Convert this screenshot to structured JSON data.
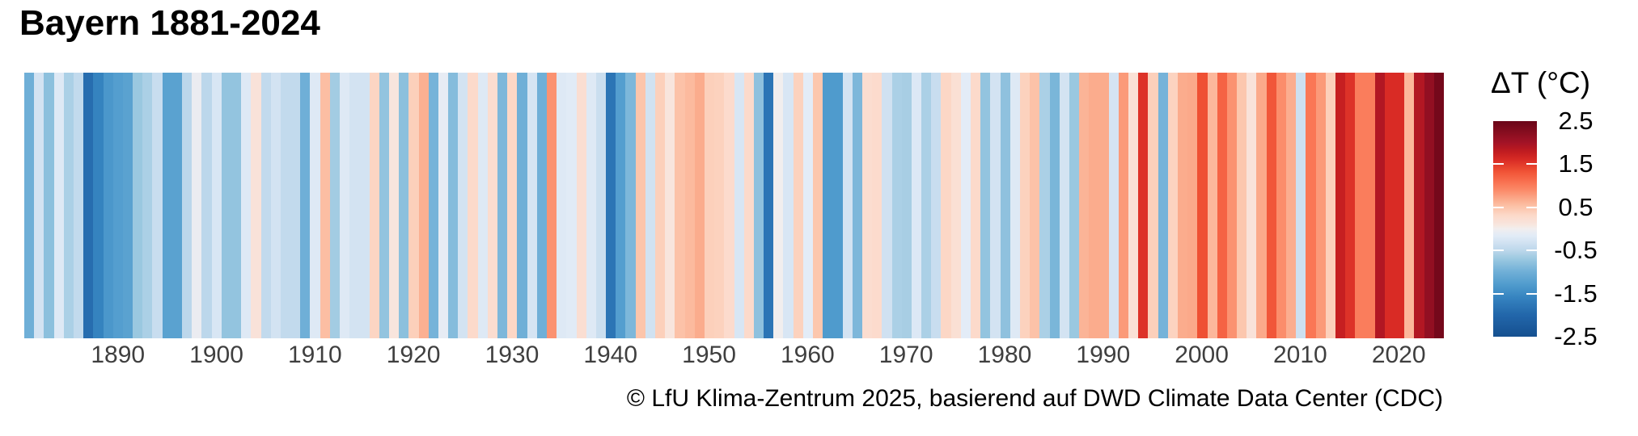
{
  "title": "Bayern 1881-2024",
  "caption": "© LfU Klima-Zentrum 2025, basierend auf DWD Climate Data Center (CDC)",
  "legend": {
    "title": "ΔT (°C)",
    "tick_labels": [
      "2.5",
      "1.5",
      "0.5",
      "-0.5",
      "-1.5",
      "-2.5"
    ],
    "tick_values": [
      2.5,
      1.5,
      0.5,
      -0.5,
      -1.5,
      -2.5
    ],
    "inner_tick_values": [
      1.5,
      0.5,
      -0.5,
      -1.5
    ]
  },
  "x_axis": {
    "tick_years": [
      1890,
      1900,
      1910,
      1920,
      1930,
      1940,
      1950,
      1960,
      1970,
      1980,
      1990,
      2000,
      2010,
      2020
    ],
    "label_color": "#3f3f3f"
  },
  "chart_data": {
    "type": "heatmap",
    "style": "warming_stripes",
    "title": "Bayern 1881-2024",
    "ylabel": "ΔT (°C)",
    "value_range": [
      -2.5,
      2.5
    ],
    "start_year": 1881,
    "end_year": 2024,
    "years": [
      1881,
      1882,
      1883,
      1884,
      1885,
      1886,
      1887,
      1888,
      1889,
      1890,
      1891,
      1892,
      1893,
      1894,
      1895,
      1896,
      1897,
      1898,
      1899,
      1900,
      1901,
      1902,
      1903,
      1904,
      1905,
      1906,
      1907,
      1908,
      1909,
      1910,
      1911,
      1912,
      1913,
      1914,
      1915,
      1916,
      1917,
      1918,
      1919,
      1920,
      1921,
      1922,
      1923,
      1924,
      1925,
      1926,
      1927,
      1928,
      1929,
      1930,
      1931,
      1932,
      1933,
      1934,
      1935,
      1936,
      1937,
      1938,
      1939,
      1940,
      1941,
      1942,
      1943,
      1944,
      1945,
      1946,
      1947,
      1948,
      1949,
      1950,
      1951,
      1952,
      1953,
      1954,
      1955,
      1956,
      1957,
      1958,
      1959,
      1960,
      1961,
      1962,
      1963,
      1964,
      1965,
      1966,
      1967,
      1968,
      1969,
      1970,
      1971,
      1972,
      1973,
      1974,
      1975,
      1976,
      1977,
      1978,
      1979,
      1980,
      1981,
      1982,
      1983,
      1984,
      1985,
      1986,
      1987,
      1988,
      1989,
      1990,
      1991,
      1992,
      1993,
      1994,
      1995,
      1996,
      1997,
      1998,
      1999,
      2000,
      2001,
      2002,
      2003,
      2004,
      2005,
      2006,
      2007,
      2008,
      2009,
      2010,
      2011,
      2012,
      2013,
      2014,
      2015,
      2016,
      2017,
      2018,
      2019,
      2020,
      2021,
      2022,
      2023,
      2024
    ],
    "values": [
      -1.0,
      -0.3,
      -0.8,
      -0.2,
      -0.6,
      -0.45,
      -1.9,
      -1.6,
      -1.35,
      -1.25,
      -1.2,
      -0.7,
      -0.6,
      -0.4,
      -1.2,
      -1.2,
      -0.5,
      -0.05,
      -0.5,
      -0.25,
      -0.75,
      -0.75,
      -0.2,
      0.15,
      -0.45,
      -0.3,
      -0.45,
      -0.45,
      -1.0,
      -0.2,
      0.55,
      -0.65,
      -0.2,
      -0.3,
      -0.3,
      0.35,
      -0.75,
      0.1,
      -0.8,
      0.4,
      0.65,
      -0.95,
      -0.1,
      -0.85,
      -0.3,
      0.3,
      -0.2,
      0.25,
      -0.9,
      0.33,
      -1.0,
      -0.28,
      -1.0,
      0.85,
      -0.2,
      -0.17,
      0.22,
      -0.2,
      -0.38,
      -1.8,
      -1.25,
      -0.9,
      0.5,
      -0.32,
      0.4,
      0.1,
      0.52,
      0.58,
      0.68,
      0.4,
      0.38,
      0.28,
      -0.25,
      0.3,
      -0.78,
      -1.8,
      0.0,
      -0.25,
      0.38,
      -0.15,
      0.48,
      -1.3,
      -1.3,
      -0.3,
      -0.9,
      0.25,
      0.28,
      -0.33,
      -0.6,
      -0.62,
      -0.22,
      -0.6,
      -0.4,
      0.33,
      0.2,
      -0.15,
      0.3,
      -0.75,
      -0.3,
      -0.78,
      -0.2,
      0.38,
      0.52,
      -0.6,
      -0.92,
      -0.3,
      -0.7,
      0.62,
      0.68,
      0.68,
      -0.28,
      0.8,
      0.18,
      1.55,
      0.4,
      -0.95,
      0.37,
      0.68,
      0.7,
      1.35,
      0.6,
      1.2,
      0.85,
      0.48,
      0.15,
      0.7,
      1.3,
      0.88,
      0.67,
      -0.35,
      1.05,
      0.8,
      0.4,
      1.75,
      1.55,
      1.0,
      1.0,
      1.9,
      1.6,
      1.6,
      0.6,
      1.9,
      2.15,
      2.4
    ],
    "colormap_anchors": [
      [
        -2.5,
        "#15508f"
      ],
      [
        -2.0,
        "#2266aa"
      ],
      [
        -1.6,
        "#3583bf"
      ],
      [
        -1.3,
        "#4f9bcd"
      ],
      [
        -1.0,
        "#6fafd7"
      ],
      [
        -0.7,
        "#9ac8e0"
      ],
      [
        -0.5,
        "#bcd7eb"
      ],
      [
        -0.3,
        "#d3e3f2"
      ],
      [
        -0.15,
        "#e3ecf7"
      ],
      [
        -0.05,
        "#ebecf1"
      ],
      [
        0.0,
        "#f1eeee"
      ],
      [
        0.1,
        "#f8e5dd"
      ],
      [
        0.3,
        "#fcdacb"
      ],
      [
        0.5,
        "#fcc5ab"
      ],
      [
        0.7,
        "#fba98a"
      ],
      [
        0.9,
        "#fb8a68"
      ],
      [
        1.1,
        "#f9704f"
      ],
      [
        1.35,
        "#ef5033"
      ],
      [
        1.6,
        "#d92b25"
      ],
      [
        1.8,
        "#c01b20"
      ],
      [
        2.0,
        "#a31326"
      ],
      [
        2.2,
        "#8c0e20"
      ],
      [
        2.5,
        "#6a0518"
      ]
    ],
    "legend_position": "right",
    "grid": false
  }
}
